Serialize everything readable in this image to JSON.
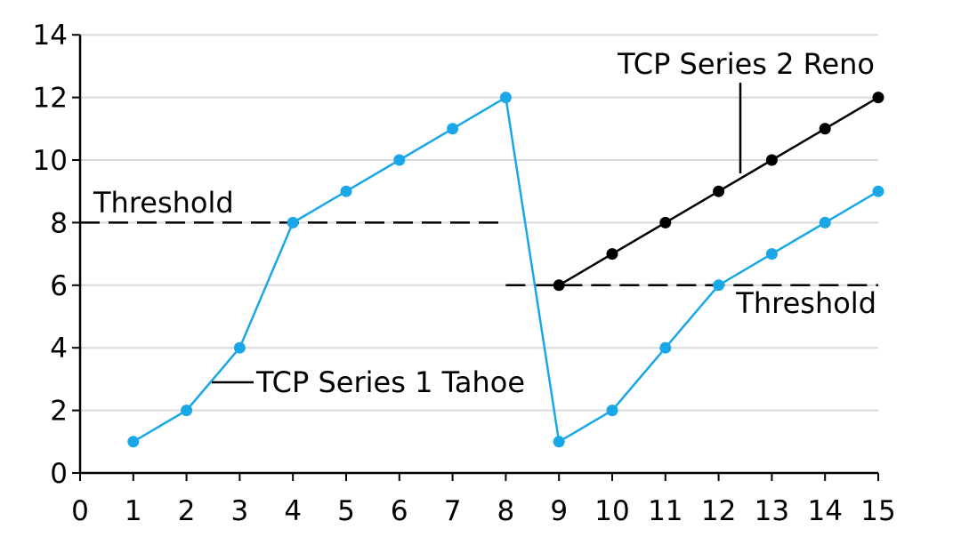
{
  "chart_data": {
    "type": "line",
    "title": "",
    "xlabel": "",
    "ylabel": "",
    "xlim": [
      0,
      15
    ],
    "ylim": [
      0,
      14
    ],
    "x_ticks": [
      "0",
      "1",
      "2",
      "3",
      "4",
      "5",
      "6",
      "7",
      "8",
      "9",
      "10",
      "11",
      "12",
      "13",
      "14",
      "15"
    ],
    "y_ticks": [
      "0",
      "2",
      "4",
      "6",
      "8",
      "10",
      "12",
      "14"
    ],
    "grid": true,
    "series": [
      {
        "name": "TCP Series 1 Tahoe",
        "color": "#1aa7e8",
        "x": [
          1,
          2,
          3,
          4,
          5,
          6,
          7,
          8,
          9,
          10,
          11,
          12,
          13,
          14,
          15
        ],
        "y": [
          1,
          2,
          4,
          8,
          9,
          10,
          11,
          12,
          1,
          2,
          4,
          6,
          7,
          8,
          9
        ]
      },
      {
        "name": "TCP Series 2 Reno",
        "color": "#000000",
        "x": [
          9,
          10,
          11,
          12,
          13,
          14,
          15
        ],
        "y": [
          6,
          7,
          8,
          9,
          10,
          11,
          12
        ]
      }
    ],
    "thresholds": [
      {
        "label": "Threshold",
        "y": 8,
        "x_range": [
          0,
          8
        ]
      },
      {
        "label": "Threshold",
        "y": 6,
        "x_range": [
          8,
          15
        ]
      }
    ]
  }
}
